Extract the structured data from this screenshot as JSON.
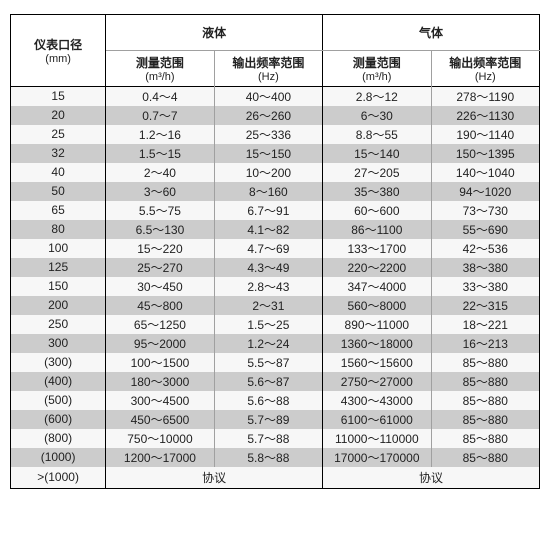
{
  "table": {
    "header": {
      "col0_line1": "仪表口径",
      "col0_line2": "(mm)",
      "group_liquid": "液体",
      "group_gas": "气体",
      "sub_range": "测量范围",
      "sub_range_unit": "(m³/h)",
      "sub_freq": "输出频率范围",
      "sub_freq_unit": "(Hz)"
    },
    "colors": {
      "zebra_light": "#f7f7f7",
      "zebra_dark": "#cccccc",
      "outer_border": "#000000",
      "inner_border": "#a0a0a0",
      "text": "#222222",
      "bg": "#ffffff"
    },
    "rows": [
      {
        "shade": "a",
        "d": "15",
        "lr": "0.4～4",
        "lf": "40～400",
        "gr": "2.8～12",
        "gf": "278～1190"
      },
      {
        "shade": "b",
        "d": "20",
        "lr": "0.7～7",
        "lf": "26～260",
        "gr": "6～30",
        "gf": "226～1130"
      },
      {
        "shade": "a",
        "d": "25",
        "lr": "1.2～16",
        "lf": "25～336",
        "gr": "8.8～55",
        "gf": "190～1140"
      },
      {
        "shade": "b",
        "d": "32",
        "lr": "1.5～15",
        "lf": "15～150",
        "gr": "15～140",
        "gf": "150～1395"
      },
      {
        "shade": "a",
        "d": "40",
        "lr": "2～40",
        "lf": "10～200",
        "gr": "27～205",
        "gf": "140～1040"
      },
      {
        "shade": "b",
        "d": "50",
        "lr": "3～60",
        "lf": "8～160",
        "gr": "35～380",
        "gf": "94～1020"
      },
      {
        "shade": "a",
        "d": "65",
        "lr": "5.5～75",
        "lf": "6.7～91",
        "gr": "60～600",
        "gf": "73～730"
      },
      {
        "shade": "b",
        "d": "80",
        "lr": "6.5～130",
        "lf": "4.1～82",
        "gr": "86～1100",
        "gf": "55～690"
      },
      {
        "shade": "a",
        "d": "100",
        "lr": "15～220",
        "lf": "4.7～69",
        "gr": "133～1700",
        "gf": "42～536"
      },
      {
        "shade": "b",
        "d": "125",
        "lr": "25～270",
        "lf": "4.3～49",
        "gr": "220～2200",
        "gf": "38～380"
      },
      {
        "shade": "a",
        "d": "150",
        "lr": "30～450",
        "lf": "2.8～43",
        "gr": "347～4000",
        "gf": "33～380"
      },
      {
        "shade": "b",
        "d": "200",
        "lr": "45～800",
        "lf": "2～31",
        "gr": "560～8000",
        "gf": "22～315"
      },
      {
        "shade": "a",
        "d": "250",
        "lr": "65～1250",
        "lf": "1.5～25",
        "gr": "890～11000",
        "gf": "18～221"
      },
      {
        "shade": "b",
        "d": "300",
        "lr": "95～2000",
        "lf": "1.2～24",
        "gr": "1360～18000",
        "gf": "16～213"
      },
      {
        "shade": "a",
        "d": "(300)",
        "lr": "100～1500",
        "lf": "5.5～87",
        "gr": "1560～15600",
        "gf": "85～880"
      },
      {
        "shade": "b",
        "d": "(400)",
        "lr": "180～3000",
        "lf": "5.6～87",
        "gr": "2750～27000",
        "gf": "85～880"
      },
      {
        "shade": "a",
        "d": "(500)",
        "lr": "300～4500",
        "lf": "5.6～88",
        "gr": "4300～43000",
        "gf": "85～880"
      },
      {
        "shade": "b",
        "d": "(600)",
        "lr": "450～6500",
        "lf": "5.7～89",
        "gr": "6100～61000",
        "gf": "85～880"
      },
      {
        "shade": "a",
        "d": "(800)",
        "lr": "750～10000",
        "lf": "5.7～88",
        "gr": "11000～110000",
        "gf": "85～880"
      },
      {
        "shade": "b",
        "d": "(1000)",
        "lr": "1200～17000",
        "lf": "5.8～88",
        "gr": "17000～170000",
        "gf": "85～880"
      }
    ],
    "footer": {
      "d": ">(1000)",
      "liquid": "协议",
      "gas": "协议"
    }
  }
}
